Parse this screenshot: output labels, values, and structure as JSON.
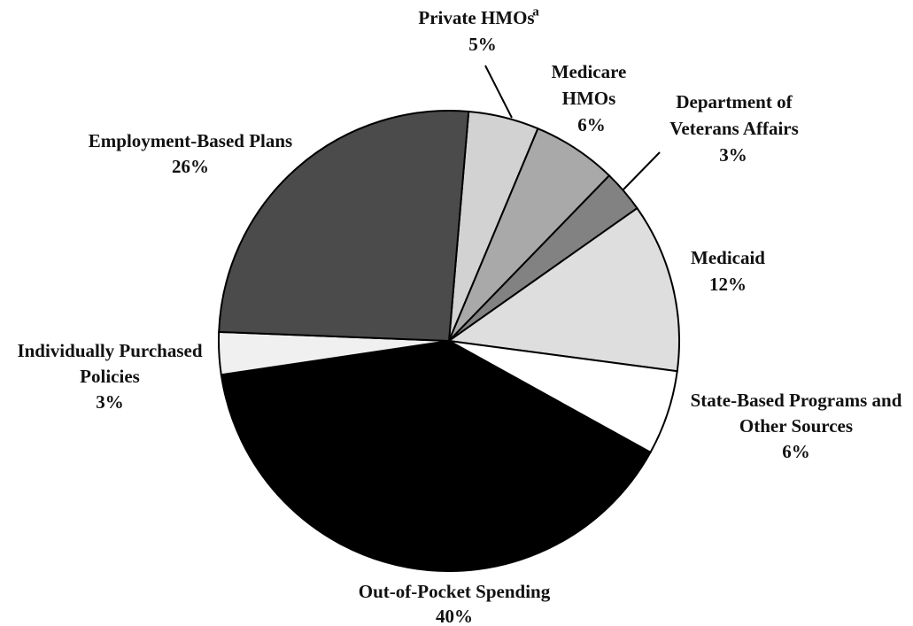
{
  "chart_data": {
    "type": "pie",
    "categories": [
      "Private HMOs",
      "Medicare\nHMOs",
      "Department of\nVeterans Affairs",
      "Medicaid",
      "State-Based Programs and\nOther Sources",
      "Out-of-Pocket Spending",
      "Individually Purchased\nPolicies",
      "Employment-Based Plans"
    ],
    "values": [
      5,
      6,
      3,
      12,
      6,
      40,
      3,
      26
    ],
    "value_labels": [
      "5%",
      "6%",
      "3%",
      "12%",
      "6%",
      "40%",
      "3%",
      "26%"
    ],
    "colors": [
      "#d2d2d2",
      "#a9a9a9",
      "#828282",
      "#dedede",
      "#ffffff",
      "#000000",
      "#f0f0f0",
      "#4b4b4b"
    ],
    "annotations": [
      "a"
    ]
  }
}
